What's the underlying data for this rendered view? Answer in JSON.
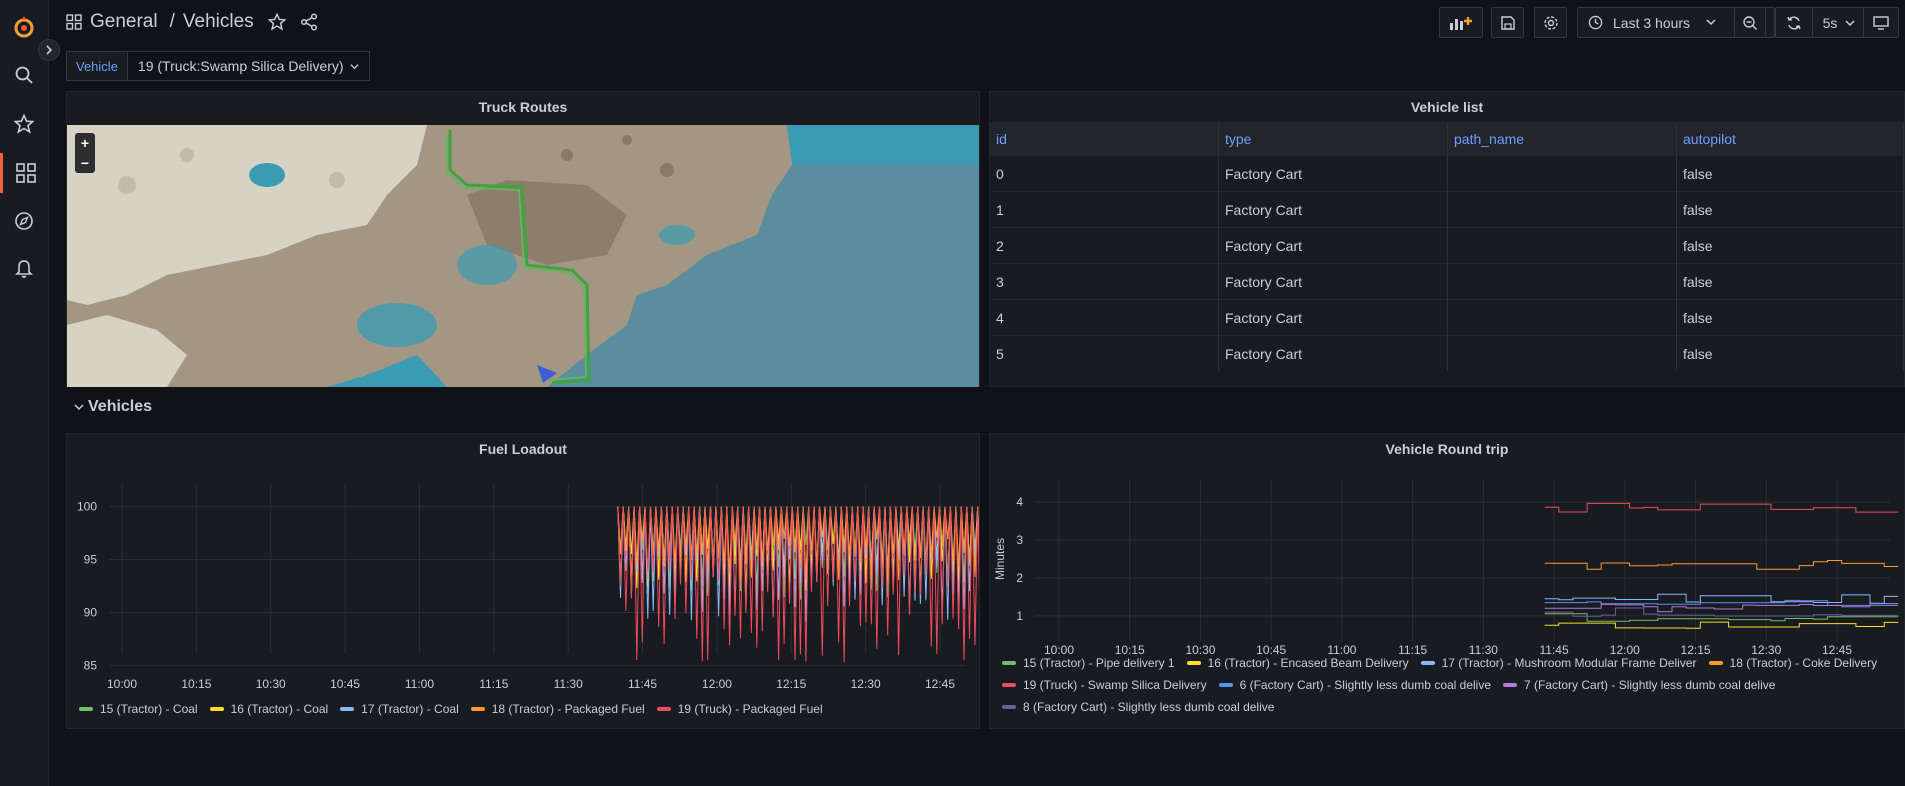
{
  "header": {
    "breadcrumb_folder": "General",
    "breadcrumb_separator": "/",
    "dashboard_title": "Vehicles",
    "time_range": "Last 3 hours",
    "refresh_interval": "5s"
  },
  "variables": {
    "vehicle_label": "Vehicle",
    "vehicle_value": "19 (Truck:Swamp Silica Delivery)"
  },
  "map_panel": {
    "title": "Truck Routes",
    "zoom_in": "+",
    "zoom_out": "−"
  },
  "vehicle_list": {
    "title": "Vehicle list",
    "columns": [
      "id",
      "type",
      "path_name",
      "autopilot"
    ],
    "rows": [
      [
        "0",
        "Factory Cart",
        "",
        "false"
      ],
      [
        "1",
        "Factory Cart",
        "",
        "false"
      ],
      [
        "2",
        "Factory Cart",
        "",
        "false"
      ],
      [
        "3",
        "Factory Cart",
        "",
        "false"
      ],
      [
        "4",
        "Factory Cart",
        "",
        "false"
      ],
      [
        "5",
        "Factory Cart",
        "",
        "false"
      ]
    ]
  },
  "row_section": {
    "title": "Vehicles"
  },
  "colors": {
    "green": "#73bf69",
    "yellow": "#fade2a",
    "blue": "#8ab8ff",
    "orange": "#ff9830",
    "red": "#f2495c",
    "blue2": "#5794f2",
    "purple": "#b877d9",
    "purple2": "#705da0",
    "accent": "#f55f3e",
    "link": "#6e9fff"
  },
  "chart_data": [
    {
      "type": "line",
      "title": "Fuel Loadout",
      "xlabel": "",
      "ylabel": "",
      "x_ticks": [
        "10:00",
        "10:15",
        "10:30",
        "10:45",
        "11:00",
        "11:15",
        "11:30",
        "11:45",
        "12:00",
        "12:15",
        "12:30",
        "12:45"
      ],
      "y_ticks": [
        85,
        90,
        95,
        100
      ],
      "ylim": [
        84,
        101
      ],
      "x_start": "11:40",
      "x_end": "12:56",
      "series": [
        {
          "name": "15 (Tractor) - Coal",
          "color": "#73bf69",
          "range": [
            91,
            100
          ]
        },
        {
          "name": "16 (Tractor) - Coal",
          "color": "#fade2a",
          "range": [
            92,
            100
          ]
        },
        {
          "name": "17 (Tractor) - Coal",
          "color": "#8ab8ff",
          "range": [
            89,
            100
          ]
        },
        {
          "name": "18 (Tractor) - Packaged Fuel",
          "color": "#ff9830",
          "range": [
            93,
            100
          ]
        },
        {
          "name": "19 (Truck) - Packaged Fuel",
          "color": "#f2495c",
          "range": [
            85,
            100
          ]
        }
      ],
      "legend": "bottom"
    },
    {
      "type": "line",
      "title": "Vehicle Round trip",
      "xlabel": "",
      "ylabel": "Minutes",
      "x_ticks": [
        "10:00",
        "10:15",
        "10:30",
        "10:45",
        "11:00",
        "11:15",
        "11:30",
        "11:45",
        "12:00",
        "12:15",
        "12:30",
        "12:45"
      ],
      "y_ticks": [
        1,
        2,
        3,
        4
      ],
      "ylim": [
        0.6,
        4.4
      ],
      "x_start": "11:43",
      "x_end": "12:56",
      "series": [
        {
          "name": "15 (Tractor) - Pipe delivery 1",
          "color": "#73bf69",
          "level": 0.95
        },
        {
          "name": "16 (Tractor) - Encased Beam Delivery",
          "color": "#fade2a",
          "level": 0.75
        },
        {
          "name": "17 (Tractor) - Mushroom Modular Frame Deliver",
          "color": "#8ab8ff",
          "level": 1.45
        },
        {
          "name": "18 (Tractor) - Coke Delivery",
          "color": "#ff9830",
          "level": 2.35
        },
        {
          "name": "19 (Truck) - Swamp Silica Delivery",
          "color": "#f2495c",
          "level": 3.85
        },
        {
          "name": "6 (Factory Cart) - Slightly less dumb coal delive",
          "color": "#5794f2",
          "level": 1.35
        },
        {
          "name": "7 (Factory Cart) - Slightly less dumb coal delive",
          "color": "#b877d9",
          "level": 1.2
        },
        {
          "name": "8 (Factory Cart) - Slightly less dumb coal delive",
          "color": "#705da0",
          "level": 1.1
        }
      ],
      "legend": "bottom"
    }
  ]
}
